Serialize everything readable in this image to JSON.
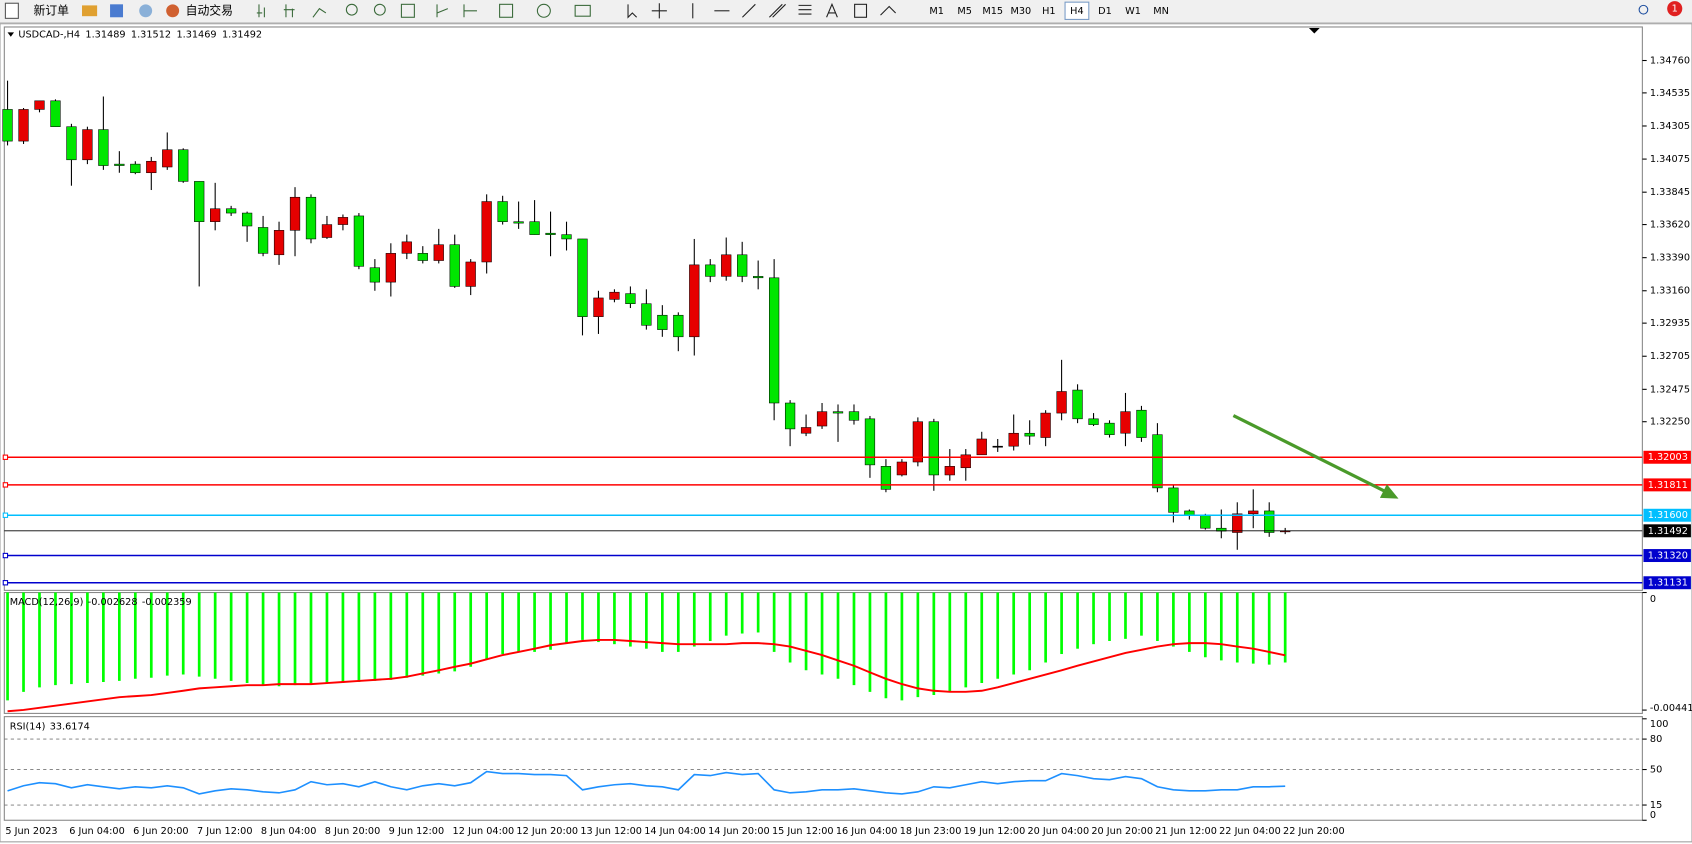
{
  "toolbar": {
    "new_order": "新订单",
    "auto_trading": "自动交易",
    "timeframes": [
      "M1",
      "M5",
      "M15",
      "M30",
      "H1",
      "H4",
      "D1",
      "W1",
      "MN"
    ],
    "selected_timeframe": 5,
    "notifications": 1
  },
  "chart_data": [
    {
      "type": "candlestick",
      "title": "USDCAD-,H4",
      "categories": [
        "5 Jun 2023",
        null,
        null,
        null,
        "6 Jun 04:00",
        null,
        null,
        null,
        "6 Jun 20:00",
        null,
        null,
        null,
        "7 Jun 12:00",
        null,
        null,
        null,
        "8 Jun 04:00",
        null,
        null,
        null,
        "8 Jun 20:00",
        null,
        null,
        null,
        "9 Jun 12:00",
        null,
        null,
        null,
        "12 Jun 04:00",
        null,
        null,
        null,
        "12 Jun 20:00",
        null,
        null,
        null,
        "13 Jun 12:00",
        null,
        null,
        null,
        "14 Jun 04:00",
        null,
        null,
        null,
        "14 Jun 20:00",
        null,
        null,
        null,
        "15 Jun 12:00",
        null,
        null,
        null,
        "16 Jun 04:00",
        null,
        null,
        null,
        "18 Jun 23:00",
        null,
        null,
        null,
        "19 Jun 12:00",
        null,
        null,
        null,
        "20 Jun 04:00",
        null,
        null,
        null,
        "20 Jun 20:00",
        null,
        null,
        null,
        "21 Jun 12:00",
        null,
        null,
        null,
        "22 Jun 04:00",
        null,
        null,
        null,
        "22 Jun 20:00"
      ],
      "open": [
        1.3442,
        1.342,
        1.3442,
        1.3448,
        1.343,
        1.3407,
        1.3428,
        1.3404,
        1.3404,
        1.3398,
        1.3402,
        1.3414,
        1.3392,
        1.3364,
        1.3373,
        1.337,
        1.336,
        1.3341,
        1.3358,
        1.3381,
        1.3353,
        1.3362,
        1.3368,
        1.3332,
        1.3322,
        1.3342,
        1.3342,
        1.3337,
        1.3348,
        1.3319,
        1.3336,
        1.3378,
        1.3364,
        1.3364,
        1.3356,
        1.3355,
        1.3352,
        1.3298,
        1.331,
        1.3314,
        1.3307,
        1.3299,
        1.3299,
        1.3284,
        1.3334,
        1.3326,
        1.3341,
        1.3326,
        1.3325,
        1.3238,
        1.3217,
        1.3222,
        1.3232,
        1.3232,
        1.3227,
        1.3194,
        1.3188,
        1.3197,
        1.3225,
        1.3188,
        1.3193,
        1.3202,
        1.3208,
        1.3208,
        1.3217,
        1.3214,
        1.3231,
        1.3247,
        1.3227,
        1.3224,
        1.3217,
        1.3233,
        1.3216,
        1.3179,
        1.3163,
        1.316,
        1.3151,
        1.3148,
        1.3161,
        1.3163,
        1.31489
      ],
      "high": [
        1.3462,
        1.3443,
        1.3448,
        1.3449,
        1.3432,
        1.343,
        1.3451,
        1.3413,
        1.3406,
        1.3409,
        1.3426,
        1.3415,
        1.3392,
        1.3391,
        1.3375,
        1.3371,
        1.3368,
        1.3364,
        1.3388,
        1.3383,
        1.3368,
        1.3369,
        1.337,
        1.3338,
        1.3349,
        1.3355,
        1.3347,
        1.3359,
        1.3355,
        1.3338,
        1.3383,
        1.3382,
        1.3378,
        1.3379,
        1.3371,
        1.3364,
        1.3352,
        1.3316,
        1.3317,
        1.3319,
        1.3317,
        1.3306,
        1.3301,
        1.3352,
        1.3338,
        1.3353,
        1.335,
        1.3337,
        1.3338,
        1.324,
        1.323,
        1.3238,
        1.3237,
        1.3237,
        1.3229,
        1.3199,
        1.3199,
        1.3228,
        1.3227,
        1.3206,
        1.3206,
        1.3218,
        1.3213,
        1.323,
        1.3226,
        1.3233,
        1.3268,
        1.3251,
        1.3231,
        1.3226,
        1.3245,
        1.3236,
        1.3224,
        1.3181,
        1.3164,
        1.3161,
        1.3164,
        1.3169,
        1.3178,
        1.3169,
        1.31512
      ],
      "low": [
        1.3417,
        1.3418,
        1.344,
        1.343,
        1.3389,
        1.3404,
        1.34,
        1.3398,
        1.3397,
        1.3386,
        1.34,
        1.3391,
        1.3319,
        1.3358,
        1.3368,
        1.335,
        1.334,
        1.3334,
        1.334,
        1.3349,
        1.3352,
        1.3358,
        1.3331,
        1.3316,
        1.3312,
        1.3338,
        1.3335,
        1.3335,
        1.3318,
        1.3313,
        1.3328,
        1.3362,
        1.3359,
        1.3355,
        1.334,
        1.3344,
        1.3285,
        1.3286,
        1.3308,
        1.3304,
        1.3289,
        1.3284,
        1.3274,
        1.3271,
        1.3322,
        1.3323,
        1.3322,
        1.3317,
        1.3226,
        1.3208,
        1.3215,
        1.322,
        1.3211,
        1.3223,
        1.3186,
        1.3176,
        1.3187,
        1.3194,
        1.3177,
        1.3184,
        1.3184,
        1.3202,
        1.3204,
        1.3205,
        1.3209,
        1.3208,
        1.3226,
        1.3224,
        1.3222,
        1.3214,
        1.3208,
        1.3211,
        1.3176,
        1.3155,
        1.3157,
        1.315,
        1.3144,
        1.3136,
        1.3151,
        1.3145,
        1.31469
      ],
      "close": [
        1.342,
        1.3442,
        1.3448,
        1.343,
        1.3407,
        1.3428,
        1.3403,
        1.3403,
        1.3398,
        1.3406,
        1.3414,
        1.3392,
        1.3364,
        1.3373,
        1.337,
        1.3361,
        1.3342,
        1.3358,
        1.3381,
        1.3352,
        1.3362,
        1.3367,
        1.3333,
        1.3322,
        1.3342,
        1.335,
        1.3337,
        1.3348,
        1.3319,
        1.3336,
        1.3378,
        1.3364,
        1.3363,
        1.3355,
        1.3355,
        1.3352,
        1.3298,
        1.3311,
        1.3315,
        1.3307,
        1.3292,
        1.3289,
        1.3284,
        1.3334,
        1.3326,
        1.3341,
        1.3326,
        1.3325,
        1.3238,
        1.322,
        1.3221,
        1.3232,
        1.3231,
        1.3226,
        1.3195,
        1.3178,
        1.3197,
        1.3225,
        1.3188,
        1.3194,
        1.3202,
        1.3213,
        1.3208,
        1.3217,
        1.3215,
        1.3231,
        1.3246,
        1.3227,
        1.3223,
        1.3216,
        1.3232,
        1.3214,
        1.3179,
        1.3162,
        1.316,
        1.3151,
        1.3149,
        1.3161,
        1.3163,
        1.3148,
        1.31492
      ],
      "up_color": "#e60000",
      "down_color": "#00e600",
      "wick_color": "#000000",
      "ylim": [
        1.31078,
        1.34993
      ],
      "yticks": [
        {
          "value": 1.3476,
          "label": "1.34760"
        },
        1.34535,
        1.34305,
        1.34075,
        1.33845,
        {
          "value": 1.3362,
          "label": "1.33620"
        },
        {
          "value": 1.3339,
          "label": "1.33390"
        },
        {
          "value": 1.3316,
          "label": "1.33160"
        },
        1.32935,
        1.32705,
        1.32475,
        {
          "value": 1.3225,
          "label": "1.32250"
        }
      ],
      "levels": [
        {
          "value": 1.32003,
          "color": "#ff0000"
        },
        {
          "value": 1.31811,
          "color": "#ff0000"
        },
        {
          "value": 1.316,
          "label": "1.31600",
          "color": "#00bfff"
        },
        {
          "value": 1.3132,
          "label": "1.31320",
          "color": "#0000cd"
        },
        {
          "value": 1.31131,
          "color": "#0000cd"
        }
      ],
      "price_line": true,
      "price_line_color": "#000000"
    },
    {
      "type": "macd",
      "title": "MACD(12,26,9)",
      "series": [
        {
          "type": "bar",
          "color": "#00ff00",
          "values": [
            -0.00405,
            -0.00373,
            -0.00356,
            -0.00348,
            -0.00344,
            -0.0034,
            -0.00336,
            -0.00332,
            -0.00324,
            -0.0032,
            -0.00312,
            -0.00308,
            -0.00316,
            -0.00324,
            -0.00332,
            -0.0034,
            -0.00348,
            -0.00352,
            -0.00348,
            -0.00344,
            -0.0034,
            -0.0034,
            -0.00336,
            -0.00332,
            -0.00328,
            -0.0032,
            -0.00312,
            -0.00304,
            -0.00296,
            -0.00279,
            -0.00251,
            -0.00231,
            -0.00223,
            -0.00223,
            -0.00215,
            -0.0019,
            -0.00178,
            -0.00186,
            -0.00194,
            -0.00203,
            -0.00211,
            -0.00223,
            -0.00223,
            -0.00203,
            -0.00182,
            -0.00162,
            -0.00154,
            -0.0015,
            -0.00223,
            -0.00263,
            -0.00292,
            -0.00308,
            -0.00324,
            -0.00348,
            -0.00373,
            -0.00397,
            -0.00405,
            -0.00393,
            -0.00385,
            -0.00373,
            -0.00356,
            -0.0034,
            -0.00324,
            -0.00308,
            -0.00292,
            -0.00263,
            -0.00231,
            -0.00211,
            -0.00194,
            -0.00182,
            -0.00174,
            -0.00162,
            -0.00182,
            -0.00203,
            -0.00223,
            -0.00243,
            -0.00255,
            -0.00263,
            -0.00267,
            -0.00271,
            -0.002628
          ]
        },
        {
          "type": "line",
          "color": "#ff0000",
          "values": [
            -0.00446,
            -0.00441,
            -0.00433,
            -0.00425,
            -0.00417,
            -0.00409,
            -0.00401,
            -0.00393,
            -0.00389,
            -0.00385,
            -0.00377,
            -0.00369,
            -0.0036,
            -0.00356,
            -0.00352,
            -0.00348,
            -0.00348,
            -0.00344,
            -0.00344,
            -0.00344,
            -0.0034,
            -0.00336,
            -0.00332,
            -0.00328,
            -0.00324,
            -0.00316,
            -0.00304,
            -0.00292,
            -0.00279,
            -0.00267,
            -0.00251,
            -0.00235,
            -0.00223,
            -0.00211,
            -0.00198,
            -0.0019,
            -0.00182,
            -0.00178,
            -0.00178,
            -0.00182,
            -0.00186,
            -0.0019,
            -0.00194,
            -0.00194,
            -0.00194,
            -0.00194,
            -0.0019,
            -0.0019,
            -0.00194,
            -0.00203,
            -0.00219,
            -0.00235,
            -0.00255,
            -0.00275,
            -0.003,
            -0.00324,
            -0.00344,
            -0.0036,
            -0.00369,
            -0.00373,
            -0.00373,
            -0.00369,
            -0.00356,
            -0.0034,
            -0.00324,
            -0.00308,
            -0.00292,
            -0.00275,
            -0.00259,
            -0.00243,
            -0.00227,
            -0.00215,
            -0.00203,
            -0.00194,
            -0.0019,
            -0.0019,
            -0.00194,
            -0.00203,
            -0.00211,
            -0.00223,
            -0.002359
          ]
        }
      ],
      "ylim": [
        -0.00454,
        0
      ],
      "yticks": [
        0,
        -0.004415
      ]
    },
    {
      "type": "line",
      "title": "RSI(14)",
      "color": "#1e90ff",
      "values": [
        29,
        34,
        37,
        36,
        32,
        35,
        33,
        31,
        33,
        32,
        34,
        32,
        26,
        29,
        31,
        30,
        28,
        27,
        30,
        38,
        35,
        36,
        33,
        38,
        33,
        30,
        34,
        36,
        34,
        37,
        48,
        46,
        46,
        45,
        45,
        44,
        30,
        33,
        35,
        36,
        34,
        33,
        30,
        45,
        44,
        47,
        45,
        46,
        30,
        27,
        28,
        30,
        30,
        31,
        29,
        27,
        26,
        28,
        33,
        32,
        35,
        38,
        36,
        38,
        39,
        39,
        46,
        44,
        41,
        40,
        43,
        41,
        33,
        30,
        29,
        29,
        30,
        30,
        33,
        33,
        33.6174
      ],
      "ylim": [
        0,
        100
      ],
      "yticks": [
        100,
        80,
        50,
        15,
        0
      ]
    }
  ]
}
